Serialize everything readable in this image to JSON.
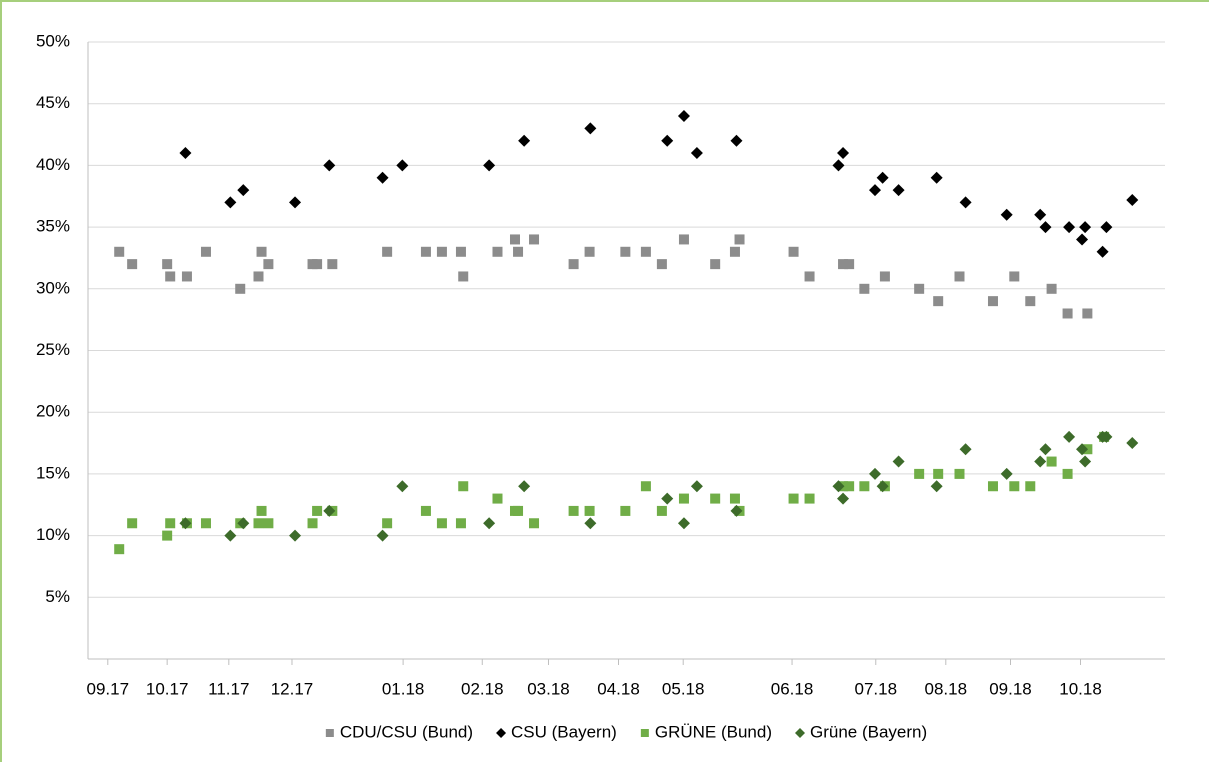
{
  "chart_data": {
    "type": "scatter",
    "xlim": [
      8.96,
      23.11
    ],
    "xticks": [
      {
        "value": 9.22,
        "label": "09.17"
      },
      {
        "value": 10,
        "label": "10.17"
      },
      {
        "value": 10.81,
        "label": "11.17"
      },
      {
        "value": 11.64,
        "label": "12.17"
      },
      {
        "value": 13.1,
        "label": "01.18"
      },
      {
        "value": 14.14,
        "label": "02.18"
      },
      {
        "value": 15.01,
        "label": "03.18"
      },
      {
        "value": 15.93,
        "label": "04.18"
      },
      {
        "value": 16.78,
        "label": "05.18"
      },
      {
        "value": 18.21,
        "label": "06.18"
      },
      {
        "value": 19.31,
        "label": "07.18"
      },
      {
        "value": 20.23,
        "label": "08.18"
      },
      {
        "value": 21.08,
        "label": "09.18"
      },
      {
        "value": 22.0,
        "label": "10.18"
      }
    ],
    "ylim": [
      0,
      50
    ],
    "yticks": [
      {
        "value": 5,
        "label": "5%"
      },
      {
        "value": 10,
        "label": "10%"
      },
      {
        "value": 15,
        "label": "15%"
      },
      {
        "value": 20,
        "label": "20%"
      },
      {
        "value": 25,
        "label": "25%"
      },
      {
        "value": 30,
        "label": "30%"
      },
      {
        "value": 35,
        "label": "35%"
      },
      {
        "value": 40,
        "label": "40%"
      },
      {
        "value": 45,
        "label": "45%"
      },
      {
        "value": 50,
        "label": "50%"
      }
    ],
    "grid": true,
    "legend": "bottom",
    "series": [
      {
        "name": "CDU/CSU (Bund)",
        "color": "#8c8c8c",
        "marker": "square",
        "x": [
          9.37,
          9.54,
          10,
          10.04,
          10.26,
          10.51,
          10.96,
          11.2,
          11.24,
          11.33,
          11.91,
          11.97,
          12.17,
          12.89,
          13.4,
          13.61,
          13.86,
          13.89,
          14.34,
          14.57,
          14.61,
          14.82,
          15.34,
          15.55,
          16.02,
          16.29,
          16.5,
          16.79,
          17.2,
          17.46,
          17.52,
          18.23,
          18.44,
          18.88,
          18.96,
          19.16,
          19.43,
          19.88,
          20.13,
          20.41,
          20.85,
          21.13,
          21.34,
          21.62,
          21.83,
          22.09
        ],
        "values": [
          33,
          32,
          32,
          31,
          31,
          33,
          30,
          31,
          33,
          32,
          32,
          32,
          32,
          33,
          33,
          33,
          33,
          31,
          33,
          34,
          33,
          34,
          32,
          33,
          33,
          33,
          32,
          34,
          32,
          33,
          34,
          33,
          31,
          32,
          32,
          30,
          31,
          30,
          29,
          31,
          29,
          31,
          29,
          30,
          28,
          28
        ]
      },
      {
        "name": "CSU (Bayern)",
        "color": "#000000",
        "marker": "diamond",
        "x": [
          10.24,
          10.83,
          11.0,
          11.68,
          12.13,
          12.83,
          13.09,
          14.23,
          14.69,
          15.56,
          16.57,
          16.79,
          16.96,
          17.48,
          18.82,
          18.88,
          19.3,
          19.4,
          19.61,
          20.11,
          20.49,
          21.03,
          21.47,
          21.54,
          21.85,
          22.02,
          22.06,
          22.29,
          22.34,
          22.68
        ],
        "values": [
          41,
          37,
          38,
          37,
          40,
          39,
          40,
          40,
          42,
          43,
          42,
          44,
          41,
          42,
          40,
          41,
          38,
          39,
          38,
          39,
          37,
          36,
          36,
          35,
          35,
          34,
          35,
          33,
          35,
          37.2
        ]
      },
      {
        "name": "GRÜNE (Bund)",
        "color": "#70ad47",
        "marker": "square",
        "x": [
          9.37,
          9.54,
          10,
          10.04,
          10.26,
          10.51,
          10.96,
          11.2,
          11.24,
          11.33,
          11.91,
          11.97,
          12.17,
          12.89,
          13.4,
          13.61,
          13.86,
          13.89,
          14.34,
          14.57,
          14.61,
          14.82,
          15.34,
          15.55,
          16.02,
          16.29,
          16.5,
          16.79,
          17.2,
          17.46,
          17.52,
          18.23,
          18.44,
          18.88,
          18.96,
          19.16,
          19.43,
          19.88,
          20.13,
          20.41,
          20.85,
          21.13,
          21.34,
          21.62,
          21.83,
          22.09,
          22.31
        ],
        "values": [
          8.9,
          11,
          10,
          11,
          11,
          11,
          11,
          11,
          12,
          11,
          11,
          12,
          12,
          11,
          12,
          11,
          11,
          14,
          13,
          12,
          12,
          11,
          12,
          12,
          12,
          14,
          12,
          13,
          13,
          13,
          12,
          13,
          13,
          14,
          14,
          14,
          14,
          15,
          15,
          15,
          14,
          14,
          14,
          16,
          15,
          17,
          18
        ]
      },
      {
        "name": "Grüne (Bayern)",
        "color": "#3d6b2a",
        "marker": "diamond",
        "x": [
          10.24,
          10.83,
          11.0,
          11.68,
          12.13,
          12.83,
          13.09,
          14.23,
          14.69,
          15.56,
          16.57,
          16.79,
          16.96,
          17.48,
          18.82,
          18.88,
          19.3,
          19.4,
          19.61,
          20.11,
          20.49,
          21.03,
          21.47,
          21.54,
          21.85,
          22.02,
          22.06,
          22.29,
          22.34,
          22.68
        ],
        "values": [
          11,
          10,
          11,
          10,
          12,
          10,
          14,
          11,
          14,
          11,
          13,
          11,
          14,
          12,
          14,
          13,
          15,
          14,
          16,
          14,
          17,
          15,
          16,
          17,
          18,
          17,
          16,
          18,
          18,
          17.5
        ]
      }
    ]
  }
}
